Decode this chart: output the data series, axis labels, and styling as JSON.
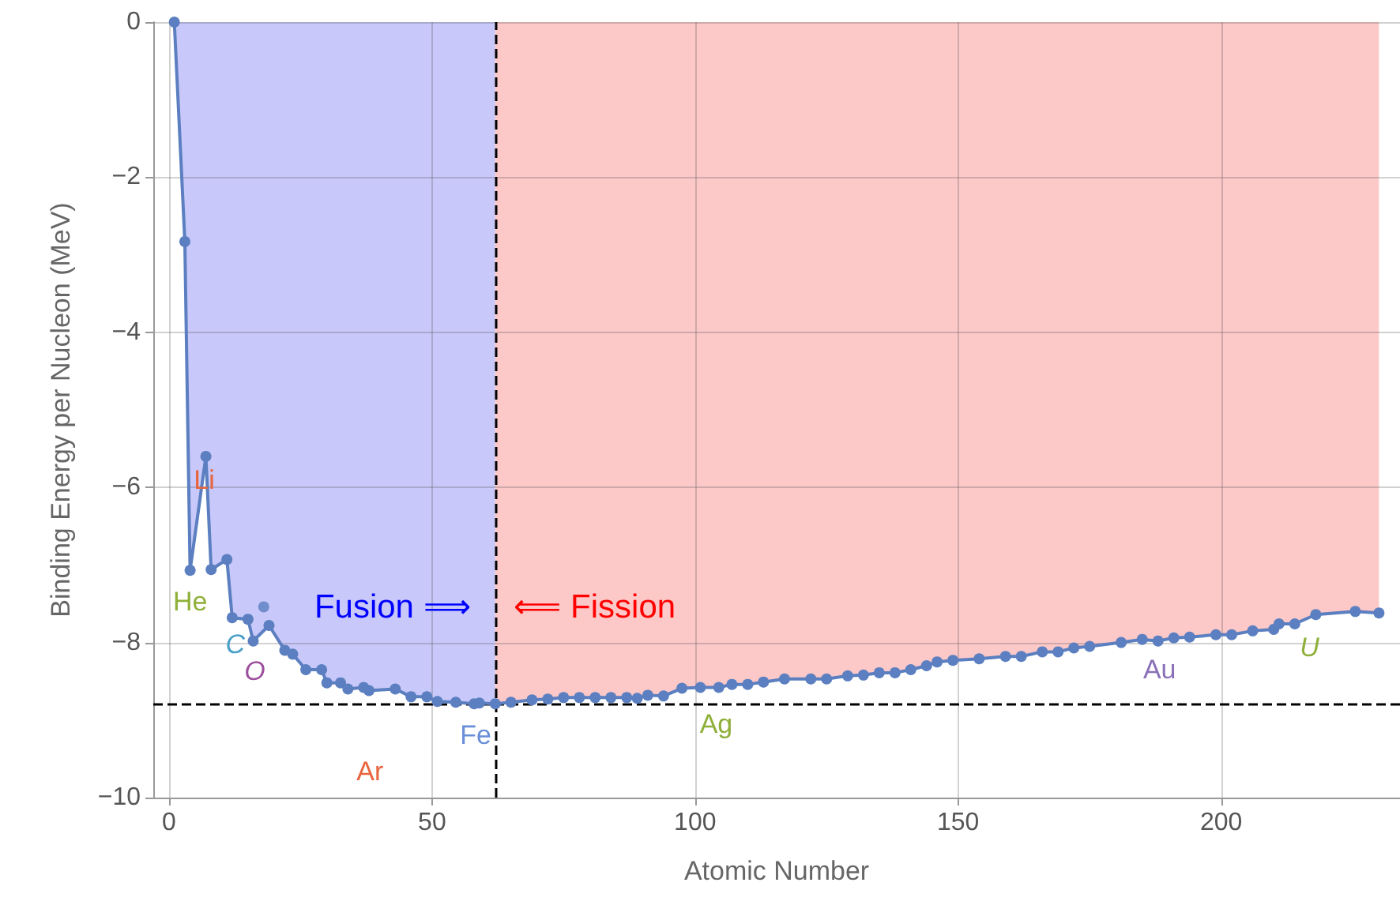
{
  "chart_data": {
    "type": "line",
    "xlabel": "Atomic Number",
    "ylabel": "Binding Energy per Nucleon (MeV)",
    "xlim": [
      -3,
      234
    ],
    "xticks": [
      0,
      50,
      100,
      150,
      200
    ],
    "ylim": [
      -10,
      0
    ],
    "yticks": [
      {
        "value": -10,
        "label": "−10"
      },
      {
        "value": -8,
        "label": "−8"
      },
      {
        "value": -6,
        "label": "−6"
      },
      {
        "value": -4,
        "label": "−4"
      },
      {
        "value": -2,
        "label": "−2"
      },
      0
    ],
    "grid": true,
    "marker": "circle",
    "line_style": "solid",
    "series": [
      {
        "color": "#5b7fc0",
        "x": [
          1,
          3,
          4,
          7,
          8,
          11,
          12,
          15,
          16,
          19,
          22,
          23.5,
          26,
          29,
          30,
          32.6,
          34,
          37,
          38,
          43,
          46,
          49,
          51,
          54.5,
          58,
          59,
          62,
          65,
          69,
          72,
          75,
          78,
          81,
          84,
          87,
          89,
          91,
          94,
          97.5,
          101,
          104.5,
          107,
          110,
          113,
          117,
          122,
          125,
          129,
          132,
          135,
          138,
          141,
          144,
          146,
          149,
          154,
          159,
          162,
          166,
          169,
          172,
          175,
          181,
          185,
          188,
          191,
          194,
          199,
          202,
          206,
          210,
          211,
          214,
          218,
          225.5,
          230
        ],
        "values": [
          0,
          -2.83,
          -7.07,
          -5.6,
          -7.06,
          -6.93,
          -7.68,
          -7.7,
          -7.98,
          -7.78,
          -8.1,
          -8.15,
          -8.35,
          -8.35,
          -8.52,
          -8.52,
          -8.6,
          -8.58,
          -8.62,
          -8.6,
          -8.7,
          -8.7,
          -8.76,
          -8.77,
          -8.79,
          -8.78,
          -8.79,
          -8.77,
          -8.74,
          -8.73,
          -8.71,
          -8.71,
          -8.71,
          -8.71,
          -8.71,
          -8.72,
          -8.68,
          -8.69,
          -8.59,
          -8.58,
          -8.58,
          -8.54,
          -8.54,
          -8.51,
          -8.47,
          -8.47,
          -8.47,
          -8.43,
          -8.42,
          -8.39,
          -8.39,
          -8.35,
          -8.3,
          -8.25,
          -8.23,
          -8.21,
          -8.18,
          -8.18,
          -8.12,
          -8.12,
          -8.07,
          -8.05,
          -8.0,
          -7.96,
          -7.98,
          -7.94,
          -7.93,
          -7.9,
          -7.9,
          -7.85,
          -7.83,
          -7.76,
          -7.76,
          -7.64,
          -7.6,
          -7.62
        ]
      },
      {
        "type": "scatter",
        "color": "#5b7fc0",
        "x": [
          18
        ],
        "values": [
          -7.54
        ]
      }
    ],
    "bands": [
      {
        "axis": "x",
        "from": 1,
        "to": 62,
        "color": "#c8c8fa"
      },
      {
        "axis": "x",
        "from": 62,
        "to": 230,
        "color": "#fcc8c8"
      }
    ],
    "ref_lines": [
      {
        "axis": "x",
        "value": 62,
        "line_style": "dashed",
        "color": "#000000"
      },
      {
        "axis": "y",
        "value": -8.79,
        "line_style": "dashed",
        "color": "#000000"
      }
    ],
    "annotations": [
      {
        "text": "He",
        "x": 4,
        "y": -7.07
      },
      {
        "text": "Li",
        "x": 7,
        "y": -5.6
      },
      {
        "text": "C",
        "x": 12,
        "y": -7.68
      },
      {
        "text": "O",
        "x": 16,
        "y": -7.98
      },
      {
        "text": "Ar",
        "x": 37,
        "y": -8.58
      },
      {
        "text": "Fe",
        "x": 58,
        "y": -8.79
      },
      {
        "text": "Ag",
        "x": 101,
        "y": -8.58
      },
      {
        "text": "Au",
        "x": 188,
        "y": -7.98
      },
      {
        "text": "U",
        "x": 218,
        "y": -7.64
      },
      {
        "text": "Fusion ⟹",
        "x": 62,
        "y": -7.55
      },
      {
        "text": "⟸ Fission",
        "x": 62,
        "y": -7.55
      }
    ]
  }
}
